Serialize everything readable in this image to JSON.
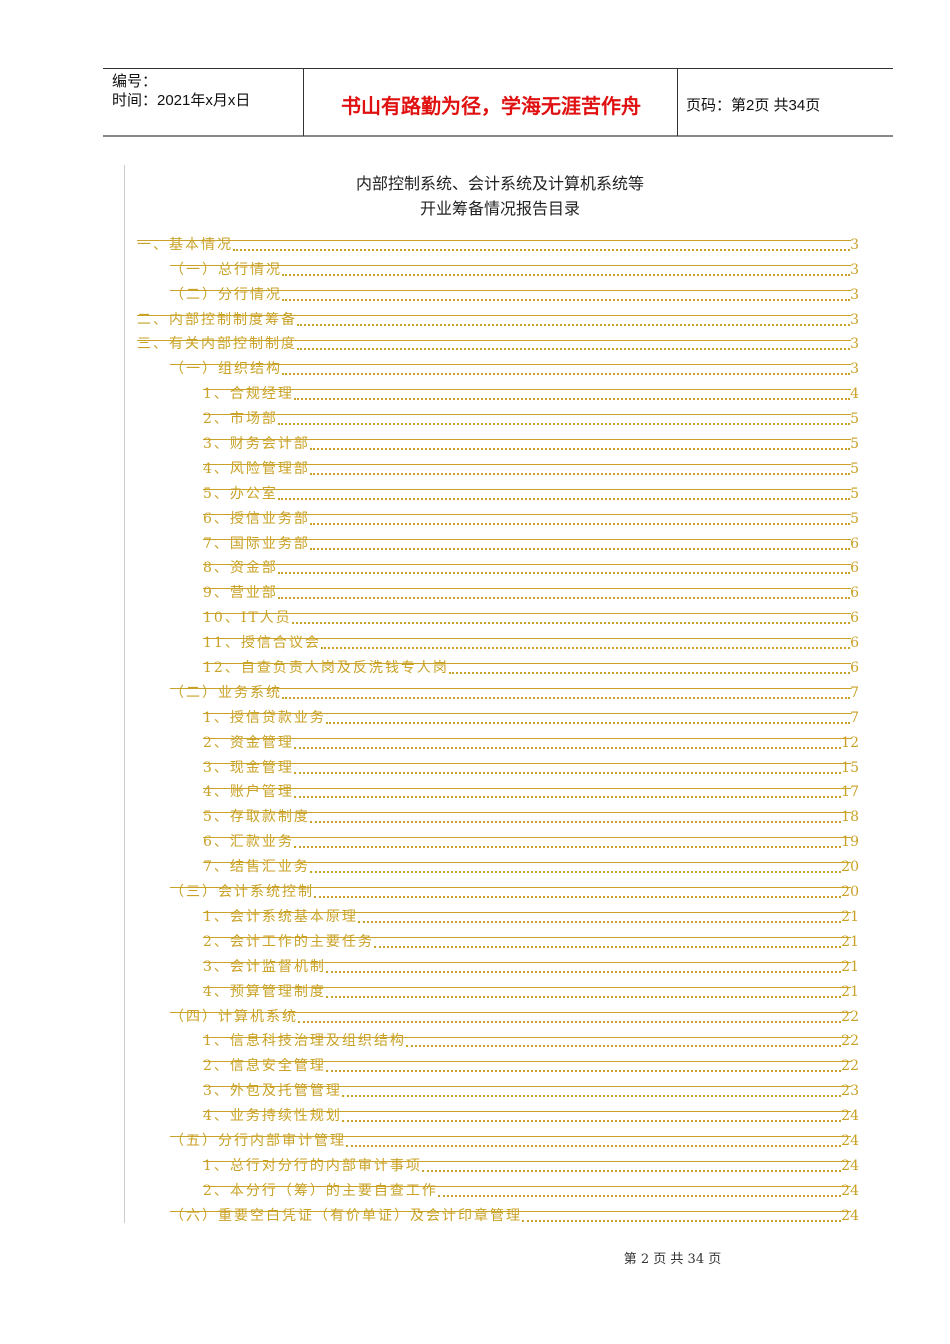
{
  "header": {
    "number_label": "编号：",
    "date_label": "时间：2021年x月x日",
    "motto": "书山有路勤为径，学海无涯苦作舟",
    "page_label": "页码：第2页  共34页"
  },
  "title": {
    "line1": "内部控制系统、会计系统及计算机系统等",
    "line2": "开业筹备情况报告目录"
  },
  "toc": [
    {
      "level": 0,
      "text": "一、基本情况",
      "page": "3"
    },
    {
      "level": 1,
      "text": "（一）总行情况",
      "page": "3"
    },
    {
      "level": 1,
      "text": "（二）分行情况",
      "page": "3"
    },
    {
      "level": 0,
      "text": "二、内部控制制度筹备",
      "page": "3"
    },
    {
      "level": 0,
      "text": "三、有关内部控制制度",
      "page": "3"
    },
    {
      "level": 1,
      "text": "（一）组织结构",
      "page": "3"
    },
    {
      "level": 2,
      "text": "1、合规经理",
      "page": "4"
    },
    {
      "level": 2,
      "text": "2、市场部",
      "page": "5"
    },
    {
      "level": 2,
      "text": "3、财务会计部",
      "page": "5"
    },
    {
      "level": 2,
      "text": "4、风险管理部",
      "page": "5"
    },
    {
      "level": 2,
      "text": "5、办公室",
      "page": "5"
    },
    {
      "level": 2,
      "text": "6、授信业务部",
      "page": "5"
    },
    {
      "level": 2,
      "text": "7、国际业务部",
      "page": "6"
    },
    {
      "level": 2,
      "text": "8、资金部",
      "page": "6"
    },
    {
      "level": 2,
      "text": "9、营业部",
      "page": "6"
    },
    {
      "level": 2,
      "text": "10、IT人员",
      "page": "6"
    },
    {
      "level": 2,
      "text": "11、授信合议会",
      "page": "6"
    },
    {
      "level": 2,
      "text": "12、自查负责人岗及反洗钱专人岗",
      "page": "6"
    },
    {
      "level": 1,
      "text": "（二）业务系统",
      "page": "7"
    },
    {
      "level": 2,
      "text": "1、授信贷款业务",
      "page": "7"
    },
    {
      "level": 2,
      "text": "2、资金管理",
      "page": "12"
    },
    {
      "level": 2,
      "text": "3、现金管理",
      "page": "15"
    },
    {
      "level": 2,
      "text": "4、账户管理",
      "page": "17"
    },
    {
      "level": 2,
      "text": "5、存取款制度",
      "page": "18"
    },
    {
      "level": 2,
      "text": "6、汇款业务",
      "page": "19"
    },
    {
      "level": 2,
      "text": "7、结售汇业务",
      "page": "20"
    },
    {
      "level": 1,
      "text": "（三）会计系统控制",
      "page": "20"
    },
    {
      "level": 2,
      "text": "1、会计系统基本原理",
      "page": "21"
    },
    {
      "level": 2,
      "text": "2、会计工作的主要任务",
      "page": "21"
    },
    {
      "level": 2,
      "text": "3、会计监督机制",
      "page": "21"
    },
    {
      "level": 2,
      "text": "4、预算管理制度",
      "page": "21"
    },
    {
      "level": 1,
      "text": "（四）计算机系统",
      "page": "22"
    },
    {
      "level": 2,
      "text": "1、信息科技治理及组织结构",
      "page": "22"
    },
    {
      "level": 2,
      "text": "2、信息安全管理",
      "page": "22"
    },
    {
      "level": 2,
      "text": "3、外包及托管管理",
      "page": "23"
    },
    {
      "level": 2,
      "text": "4、业务持续性规划",
      "page": "24"
    },
    {
      "level": 1,
      "text": "（五）分行内部审计管理",
      "page": "24"
    },
    {
      "level": 2,
      "text": "1、总行对分行的内部审计事项",
      "page": "24"
    },
    {
      "level": 2,
      "text": "2、本分行（筹）的主要自查工作",
      "page": "24"
    },
    {
      "level": 1,
      "text": "（六）重要空白凭证（有价单证）及会计印章管理",
      "page": "24"
    }
  ],
  "footer": "第 2 页 共 34 页",
  "colors": {
    "toc": "#c9a227",
    "motto": "#e01010"
  }
}
